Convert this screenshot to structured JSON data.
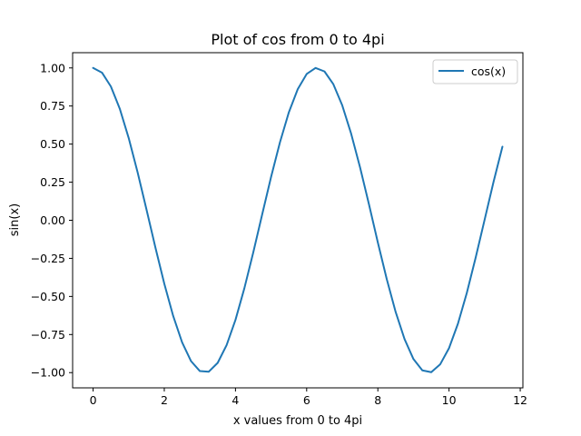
{
  "chart_data": {
    "type": "line",
    "title": "Plot of cos from 0 to 4pi",
    "xlabel": "x values from 0 to 4pi",
    "ylabel": "sin(x)",
    "xlim": [
      -0.575,
      12.075
    ],
    "ylim": [
      -1.1,
      1.1
    ],
    "xticks": [
      0,
      2,
      4,
      6,
      8,
      10,
      12
    ],
    "xtick_labels": [
      "0",
      "2",
      "4",
      "6",
      "8",
      "10",
      "12"
    ],
    "yticks": [
      1.0,
      0.75,
      0.5,
      0.25,
      0.0,
      -0.25,
      -0.5,
      -0.75,
      -1.0
    ],
    "ytick_labels": [
      "1.00",
      "0.75",
      "0.50",
      "0.25",
      "0.00",
      "−0.25",
      "−0.50",
      "−0.75",
      "−1.00"
    ],
    "grid": false,
    "legend_position": "upper right",
    "series": [
      {
        "name": "cos(x)",
        "color": "#1f77b4",
        "x": [
          0.0,
          0.25,
          0.5,
          0.75,
          1.0,
          1.25,
          1.5,
          1.75,
          2.0,
          2.25,
          2.5,
          2.75,
          3.0,
          3.25,
          3.5,
          3.75,
          4.0,
          4.25,
          4.5,
          4.75,
          5.0,
          5.25,
          5.5,
          5.75,
          6.0,
          6.25,
          6.5,
          6.75,
          7.0,
          7.25,
          7.5,
          7.75,
          8.0,
          8.25,
          8.5,
          8.75,
          9.0,
          9.25,
          9.5,
          9.75,
          10.0,
          10.25,
          10.5,
          10.75,
          11.0,
          11.25,
          11.5
        ],
        "y": [
          1.0,
          0.969,
          0.878,
          0.732,
          0.54,
          0.315,
          0.071,
          -0.178,
          -0.416,
          -0.628,
          -0.801,
          -0.924,
          -0.99,
          -0.994,
          -0.936,
          -0.82,
          -0.654,
          -0.446,
          -0.211,
          0.038,
          0.284,
          0.512,
          0.709,
          0.861,
          0.96,
          1.0,
          0.977,
          0.893,
          0.754,
          0.568,
          0.347,
          0.105,
          -0.146,
          -0.386,
          -0.602,
          -0.78,
          -0.911,
          -0.985,
          -0.997,
          -0.946,
          -0.839,
          -0.679,
          -0.476,
          -0.243,
          0.004,
          0.252,
          0.483
        ]
      }
    ]
  }
}
